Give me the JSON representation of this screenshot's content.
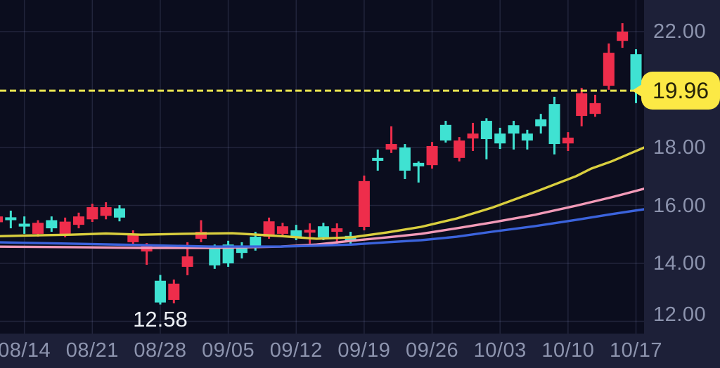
{
  "screen": {
    "description_label": "candlestick price chart with moving averages and average-cost price line"
  },
  "chart_data": {
    "type": "candlestick",
    "title": "",
    "xlabel": "",
    "ylabel": "",
    "y_axis_side": "right",
    "grid": true,
    "y_ticks": [
      {
        "label": "22.00",
        "value": 22.0
      },
      {
        "label": "18.00",
        "value": 18.0
      },
      {
        "label": "16.00",
        "value": 16.0
      },
      {
        "label": "14.00",
        "value": 14.0
      },
      {
        "label": "12.00",
        "value": 12.0
      }
    ],
    "x_ticks": [
      {
        "label": "08/14",
        "candle_index": 2
      },
      {
        "label": "08/21",
        "candle_index": 7
      },
      {
        "label": "08/28",
        "candle_index": 12
      },
      {
        "label": "09/05",
        "candle_index": 17
      },
      {
        "label": "09/12",
        "candle_index": 22
      },
      {
        "label": "09/19",
        "candle_index": 27
      },
      {
        "label": "09/26",
        "candle_index": 32
      },
      {
        "label": "10/03",
        "candle_index": 37
      },
      {
        "label": "10/10",
        "candle_index": 42
      },
      {
        "label": "10/17",
        "candle_index": 47
      }
    ],
    "y_range_visible": [
      11.6,
      22.4
    ],
    "price_line": {
      "label": "19.96",
      "value": 19.96,
      "style": "dashed"
    },
    "low_annotation": {
      "label": "12.58",
      "value": 12.58,
      "candle_index": 12
    },
    "candle_format": [
      "open",
      "high",
      "low",
      "close"
    ],
    "candles": [
      [
        15.62,
        15.67,
        15.38,
        15.42
      ],
      [
        15.49,
        15.82,
        15.21,
        15.59
      ],
      [
        15.27,
        15.62,
        15.02,
        15.37
      ],
      [
        15.4,
        15.49,
        14.92,
        15.02
      ],
      [
        15.21,
        15.62,
        15.09,
        15.49
      ],
      [
        15.44,
        15.58,
        14.9,
        14.99
      ],
      [
        15.62,
        15.75,
        15.21,
        15.33
      ],
      [
        15.94,
        16.06,
        15.43,
        15.52
      ],
      [
        15.94,
        16.11,
        15.52,
        15.64
      ],
      [
        15.58,
        16.01,
        15.45,
        15.9
      ],
      [
        15.02,
        15.14,
        14.61,
        14.73
      ],
      [
        14.61,
        14.7,
        13.95,
        14.41
      ],
      [
        12.65,
        13.6,
        12.58,
        13.4
      ],
      [
        13.3,
        13.44,
        12.62,
        12.74
      ],
      [
        14.24,
        14.73,
        13.59,
        13.88
      ],
      [
        15.09,
        15.49,
        14.73,
        14.85
      ],
      [
        13.93,
        14.65,
        13.81,
        14.53
      ],
      [
        14.0,
        14.78,
        13.88,
        14.65
      ],
      [
        14.36,
        14.73,
        14.17,
        14.56
      ],
      [
        14.56,
        15.09,
        14.44,
        14.92
      ],
      [
        15.45,
        15.58,
        14.85,
        14.92
      ],
      [
        15.28,
        15.4,
        14.92,
        15.02
      ],
      [
        14.92,
        15.33,
        14.8,
        15.14
      ],
      [
        15.16,
        15.38,
        14.68,
        15.06
      ],
      [
        14.9,
        15.4,
        14.8,
        15.28
      ],
      [
        15.21,
        15.38,
        14.68,
        15.09
      ],
      [
        14.75,
        15.09,
        14.61,
        14.95
      ],
      [
        16.84,
        17.03,
        15.14,
        15.26
      ],
      [
        17.54,
        17.93,
        17.2,
        17.64
      ],
      [
        18.12,
        18.73,
        17.81,
        17.93
      ],
      [
        17.2,
        18.12,
        16.91,
        18.0
      ],
      [
        17.35,
        17.52,
        16.79,
        17.47
      ],
      [
        18.05,
        18.19,
        17.27,
        17.39
      ],
      [
        18.24,
        18.92,
        18.17,
        18.78
      ],
      [
        18.24,
        18.36,
        17.52,
        17.64
      ],
      [
        18.48,
        18.85,
        17.88,
        18.31
      ],
      [
        18.29,
        19.01,
        17.59,
        18.92
      ],
      [
        18.14,
        18.68,
        17.95,
        18.48
      ],
      [
        18.48,
        18.92,
        17.93,
        18.77
      ],
      [
        18.24,
        18.61,
        17.93,
        18.48
      ],
      [
        18.73,
        19.16,
        18.48,
        18.97
      ],
      [
        18.12,
        19.75,
        17.76,
        19.5
      ],
      [
        18.34,
        18.53,
        17.88,
        18.14
      ],
      [
        19.87,
        20.06,
        18.73,
        19.09
      ],
      [
        19.53,
        19.82,
        19.06,
        19.16
      ],
      [
        21.27,
        21.59,
        19.99,
        20.13
      ],
      [
        22.0,
        22.29,
        21.44,
        21.68
      ],
      [
        19.99,
        21.39,
        19.53,
        21.22
      ]
    ],
    "ma_lines": [
      {
        "name": "ma-yellow",
        "color": "#d9ce3e",
        "points": [
          [
            -0.3,
            14.93
          ],
          [
            2,
            14.96
          ],
          [
            5.4,
            14.99
          ],
          [
            8,
            15.03
          ],
          [
            10.6,
            14.99
          ],
          [
            13.7,
            15.02
          ],
          [
            17.3,
            15.04
          ],
          [
            20.9,
            14.94
          ],
          [
            23.5,
            14.85
          ],
          [
            26.1,
            14.9
          ],
          [
            28.7,
            15.07
          ],
          [
            31.2,
            15.26
          ],
          [
            33.8,
            15.55
          ],
          [
            36.4,
            15.92
          ],
          [
            39.5,
            16.45
          ],
          [
            42.6,
            17.01
          ],
          [
            43.7,
            17.27
          ],
          [
            45.2,
            17.52
          ],
          [
            47.8,
            18.04
          ]
        ]
      },
      {
        "name": "ma-pink",
        "color": "#f29ab8",
        "points": [
          [
            -0.3,
            14.58
          ],
          [
            5.4,
            14.56
          ],
          [
            10.6,
            14.53
          ],
          [
            15.7,
            14.53
          ],
          [
            20.9,
            14.58
          ],
          [
            23.5,
            14.65
          ],
          [
            26.1,
            14.78
          ],
          [
            28.7,
            14.9
          ],
          [
            31.2,
            15.02
          ],
          [
            33.8,
            15.21
          ],
          [
            36.4,
            15.41
          ],
          [
            39.5,
            15.67
          ],
          [
            42.6,
            15.99
          ],
          [
            45.2,
            16.28
          ],
          [
            47.8,
            16.6
          ]
        ]
      },
      {
        "name": "ma-blue",
        "color": "#3b63dc",
        "points": [
          [
            -0.3,
            14.73
          ],
          [
            5.4,
            14.68
          ],
          [
            10.6,
            14.63
          ],
          [
            15.7,
            14.58
          ],
          [
            20.9,
            14.58
          ],
          [
            23.5,
            14.61
          ],
          [
            26.1,
            14.65
          ],
          [
            28.7,
            14.73
          ],
          [
            31.2,
            14.8
          ],
          [
            33.8,
            14.92
          ],
          [
            36.4,
            15.09
          ],
          [
            39.5,
            15.28
          ],
          [
            42.6,
            15.5
          ],
          [
            45.2,
            15.7
          ],
          [
            47.8,
            15.88
          ]
        ]
      }
    ],
    "colors": {
      "up_candle": "#3fe2d2",
      "down_candle": "#ee2d4b",
      "plot_bg": "#0b0d1e",
      "axis_bg": "#1d2038",
      "grid": "rgba(145,155,210,0.17)",
      "axis_text": "#8d94ae",
      "price_line": "#e9e452",
      "flag_bg": "#fce945",
      "flag_text": "#272409",
      "low_label_text": "#eef1f6"
    }
  }
}
